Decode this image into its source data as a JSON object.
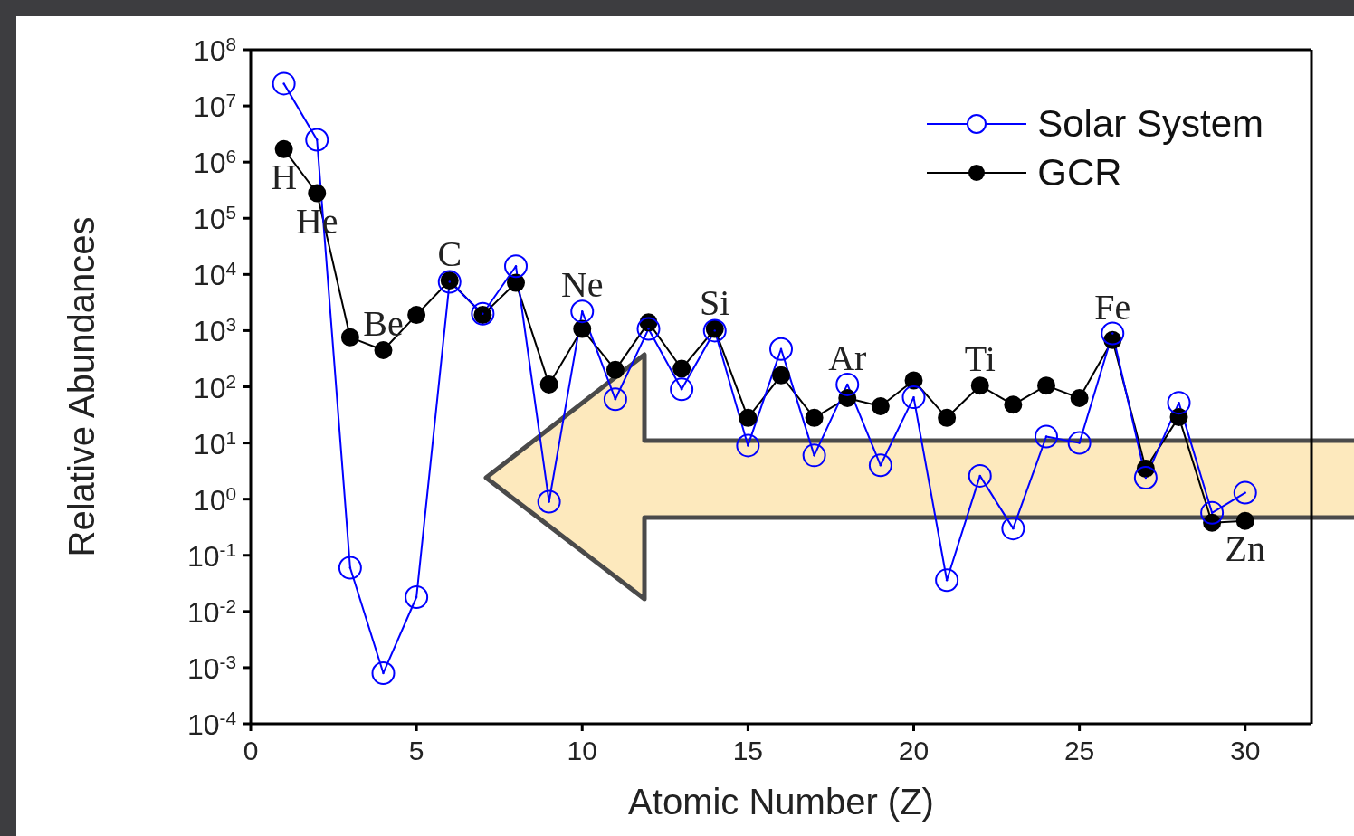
{
  "chart_data": {
    "type": "line",
    "xlabel": "Atomic Number (Z)",
    "ylabel": "Relative Abundances",
    "x": [
      1,
      2,
      3,
      4,
      5,
      6,
      7,
      8,
      9,
      10,
      11,
      12,
      13,
      14,
      15,
      16,
      17,
      18,
      19,
      20,
      21,
      22,
      23,
      24,
      25,
      26,
      27,
      28,
      29,
      30
    ],
    "series": [
      {
        "name": "Solar System",
        "color": "#0000ff",
        "marker": "circle",
        "values": [
          25000000.0,
          2500000.0,
          0.06,
          0.0008,
          0.018,
          7400,
          2000,
          14000,
          0.9,
          2200,
          60,
          1070,
          90,
          1000,
          9,
          470,
          6,
          110,
          4,
          65,
          0.036,
          2.6,
          0.3,
          13,
          10,
          890,
          2.4,
          52,
          0.57,
          1.3
        ]
      },
      {
        "name": "GCR",
        "color": "#000000",
        "marker": "circle",
        "values": [
          1700000.0,
          280000.0,
          760,
          450,
          1900,
          7800,
          1900,
          7100,
          110,
          1070,
          200,
          1400,
          210,
          1070,
          28,
          160,
          28,
          63,
          45,
          130,
          28,
          105,
          48,
          105,
          63,
          680,
          3.5,
          29,
          0.38,
          0.41
        ]
      }
    ],
    "xlim": [
      0,
      32
    ],
    "xticks": [
      0,
      5,
      10,
      15,
      20,
      25,
      30
    ],
    "log": "y",
    "ylim": [
      0.0001,
      100000000
    ],
    "yticks": [
      {
        "value": 0.0001,
        "label": "10$^{-4}$"
      },
      {
        "value": 0.001,
        "label": "10$^{-3}$"
      },
      {
        "value": 0.01,
        "label": "10$^{-2}$"
      },
      {
        "value": 0.1,
        "label": "10$^{-1}$"
      },
      {
        "value": 1,
        "label": "10$^{0}$"
      },
      {
        "value": 10,
        "label": "10$^{1}$"
      },
      {
        "value": 100,
        "label": "10$^{2}$"
      },
      {
        "value": 1000,
        "label": "10$^{3}$"
      },
      {
        "value": 10000,
        "label": "10$^{4}$"
      },
      {
        "value": 100000,
        "label": "10$^{5}$"
      },
      {
        "value": 1000000,
        "label": "10$^{6}$"
      },
      {
        "value": 10000000,
        "label": "10$^{7}$"
      },
      {
        "value": 100000000,
        "label": "10$^{8}$"
      }
    ],
    "grid": false,
    "legend": "top right",
    "line_style": "solid",
    "annotations": [
      {
        "text": "H",
        "x": 1,
        "y": 1700000
      },
      {
        "text": "He",
        "x": 2,
        "y": 280000
      },
      {
        "text": "Be",
        "x": 4,
        "y": 450
      },
      {
        "text": "C",
        "x": 6,
        "y": 7800
      },
      {
        "text": "Ne",
        "x": 10,
        "y": 2200
      },
      {
        "text": "Si",
        "x": 14,
        "y": 1070
      },
      {
        "text": "Ar",
        "x": 18,
        "y": 110
      },
      {
        "text": "Ti",
        "x": 22,
        "y": 105
      },
      {
        "text": "Fe",
        "x": 26,
        "y": 890
      },
      {
        "text": "Zn",
        "x": 30,
        "y": 0.41
      }
    ]
  }
}
